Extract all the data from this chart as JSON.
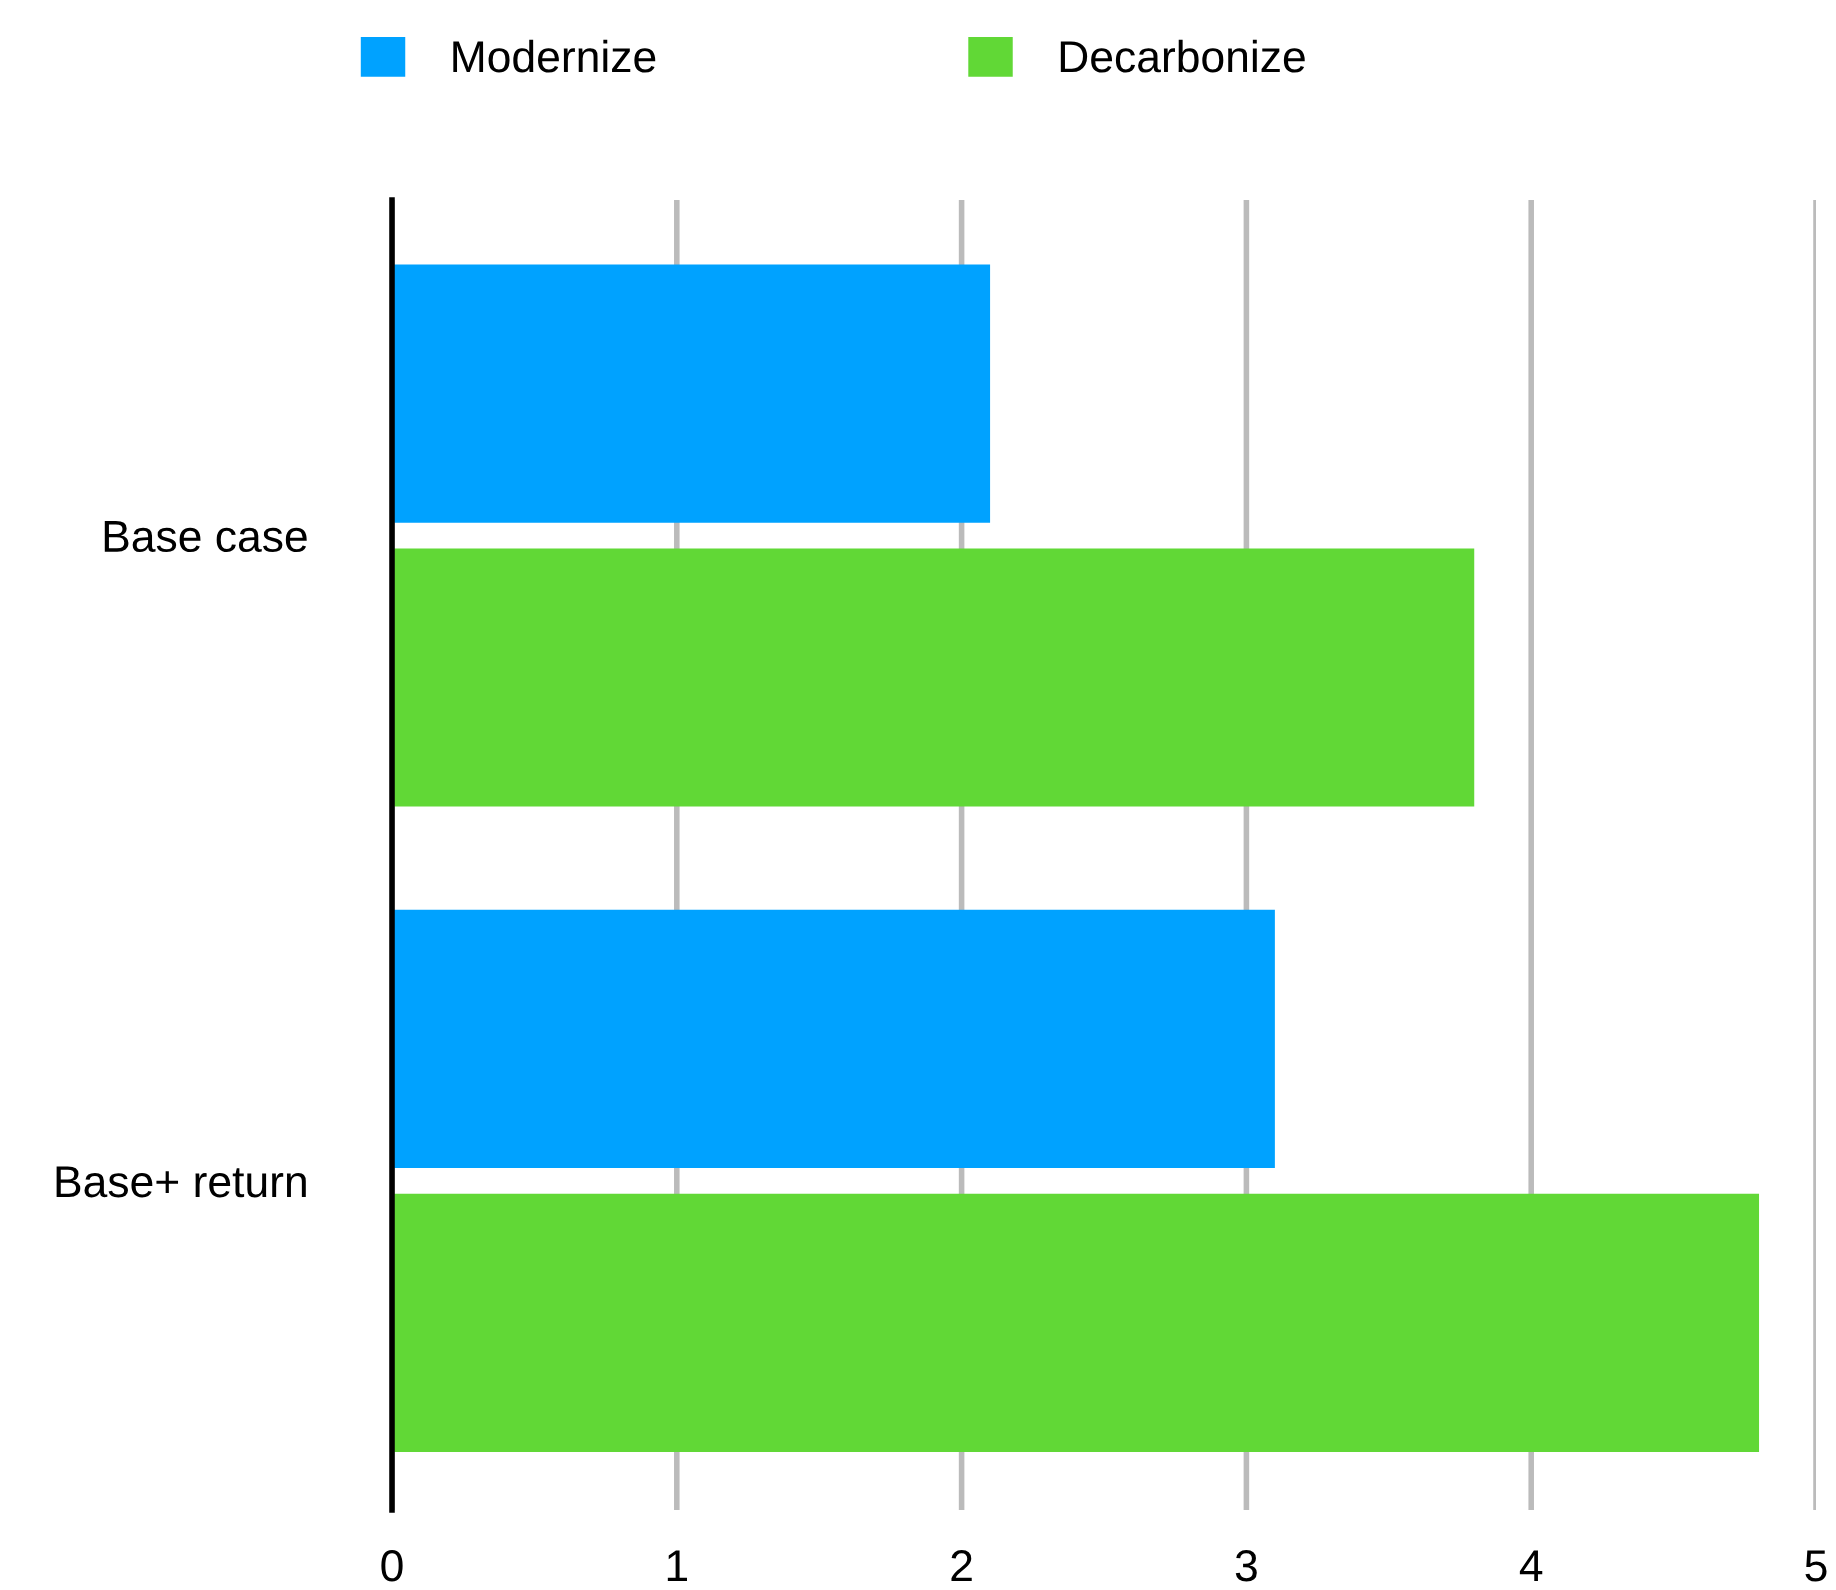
{
  "chart_data": {
    "type": "bar",
    "orientation": "horizontal",
    "categories": [
      "Base case",
      "Base+ return"
    ],
    "series": [
      {
        "name": "Modernize",
        "color": "#00a2ff",
        "values": [
          2.1,
          3.1
        ]
      },
      {
        "name": "Decarbonize",
        "color": "#61d836",
        "values": [
          3.8,
          4.8
        ]
      }
    ],
    "xlim": [
      0,
      5
    ],
    "xticks": [
      0,
      1,
      2,
      3,
      4,
      5
    ],
    "grid": "x",
    "legend": "top"
  }
}
